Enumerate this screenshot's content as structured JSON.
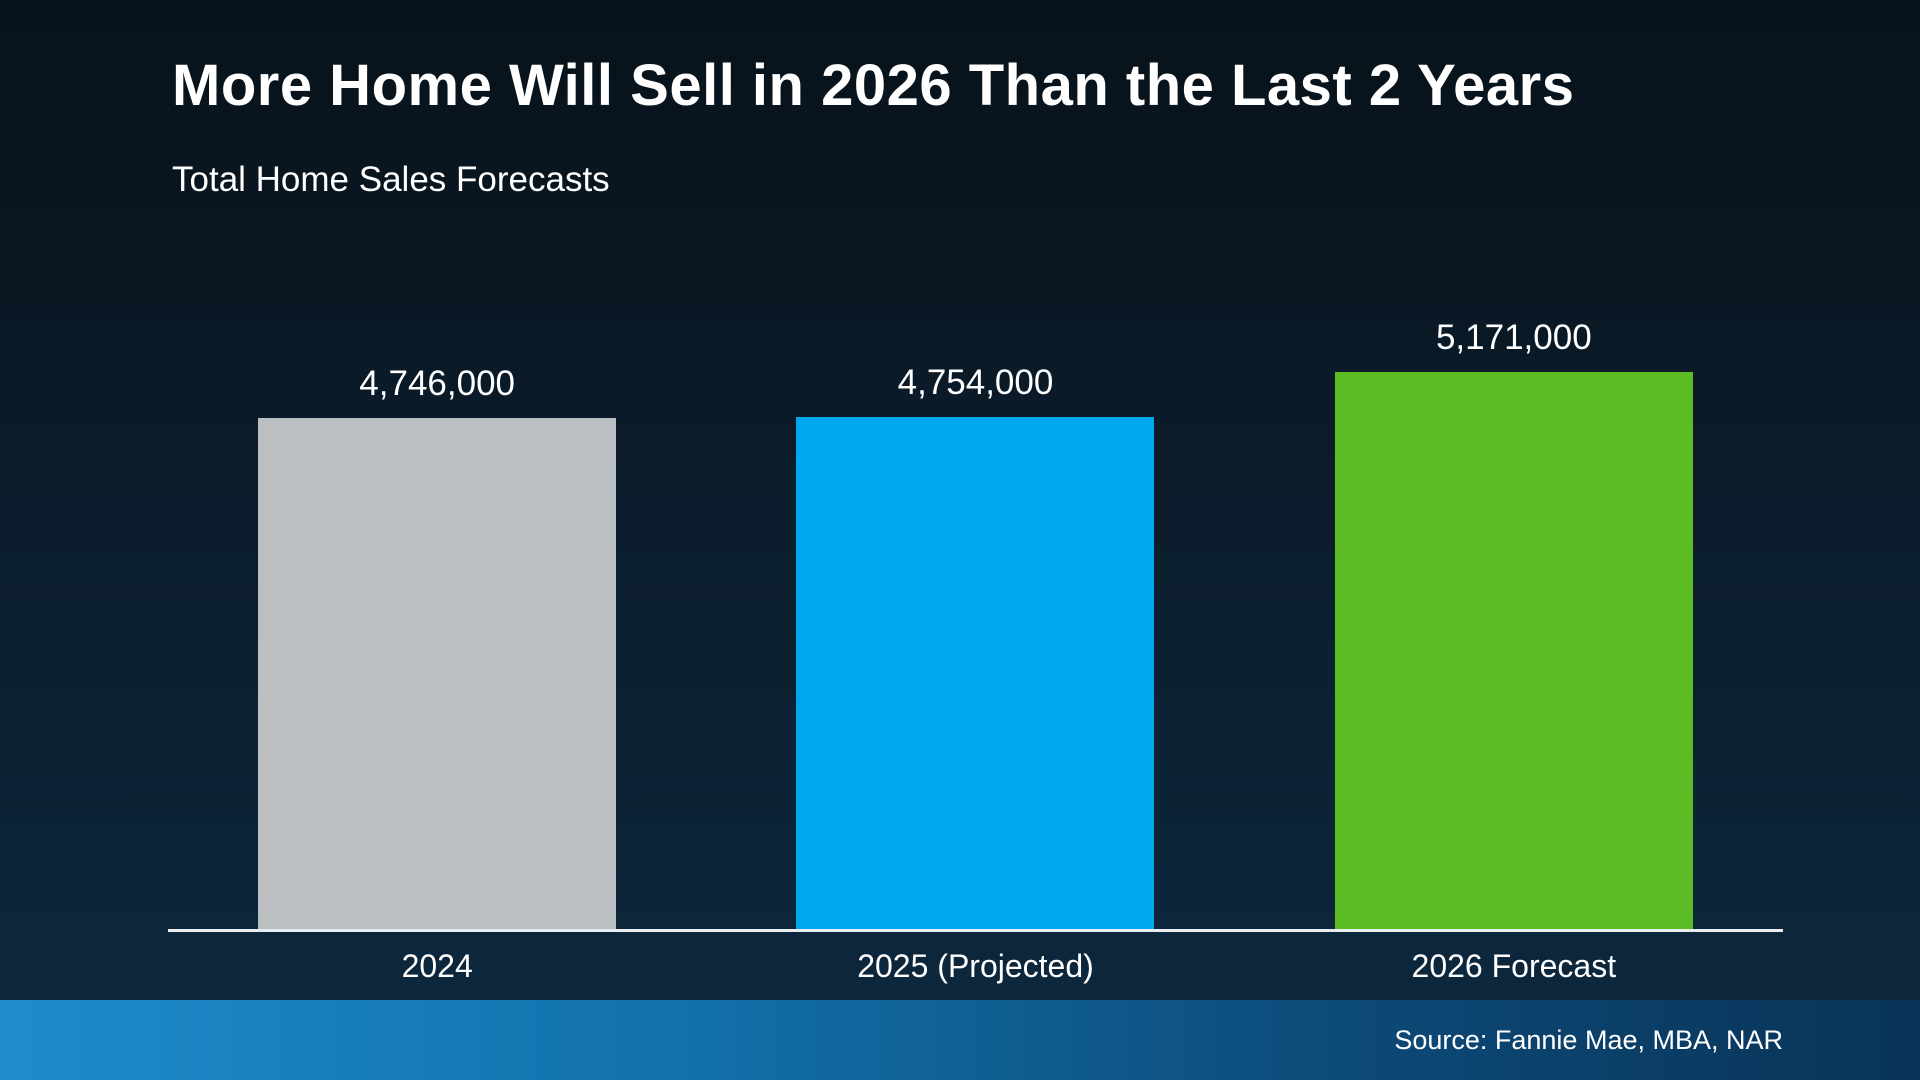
{
  "chart_data": {
    "type": "bar",
    "title": "More Home Will Sell in 2026 Than the Last 2 Years",
    "subtitle": "Total Home Sales Forecasts",
    "categories": [
      "2024",
      "2025 (Projected)",
      "2026 Forecast"
    ],
    "values": [
      4746000,
      4754000,
      5171000
    ],
    "value_labels": [
      "4,746,000",
      "4,754,000",
      "5,171,000"
    ],
    "bar_colors": [
      "#bcbfc1",
      "#00a9ee",
      "#5bbd23"
    ],
    "ylim": [
      0,
      5171000
    ],
    "grid": false,
    "legend": false,
    "value_label_position": "above-bar"
  },
  "footer": {
    "source_label": "Source: Fannie Mae, MBA, NAR"
  },
  "colors": {
    "background_top": "#08121a",
    "background_bottom": "#0d2940",
    "axis": "#e7edf1",
    "text": "#ffffff",
    "footer_gradient_left": "#1e8ccb",
    "footer_gradient_right": "#093357"
  }
}
